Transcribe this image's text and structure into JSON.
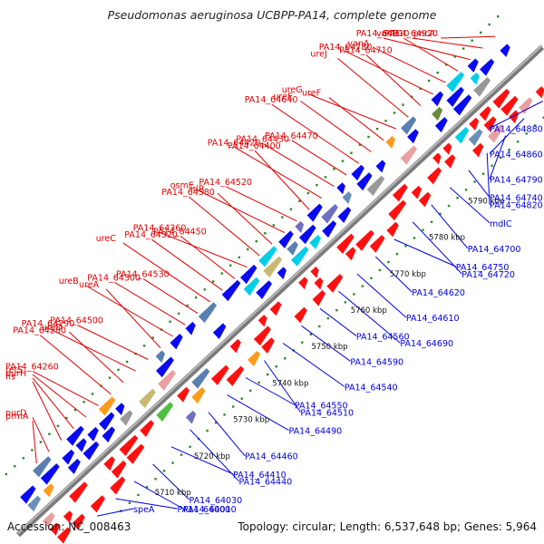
{
  "title": "Pseudomonas aeruginosa UCBPP-PA14, complete genome",
  "footer": {
    "accession": "Accession: NC_008463",
    "summary": "Topology: circular; Length: 6,537,648 bp; Genes: 5,964"
  },
  "colors": {
    "backbone": "#7a7a7a",
    "upper_gene_label": "#e00000",
    "lower_gene_label": "#0000dd",
    "gc_dots": "#2a8a2a",
    "forward_gene": "#ff1010",
    "reverse_gene": "#0a0af0"
  },
  "ticks": [
    "5710 kbp",
    "5720 kbp",
    "5730 kbp",
    "5740 kbp",
    "5750 kbp",
    "5760 kbp",
    "5770 kbp",
    "5780 kbp",
    "5790 kbp"
  ],
  "upper_labels": [
    "pncA",
    "PA14_64920",
    "PA14_64910",
    "vanB",
    "vanA",
    "PA14_64780",
    "PA14_64710",
    "ureJ",
    "ureG",
    "ureF",
    "ureE",
    "PA14_64640",
    "PA14_64470",
    "PA14_64430",
    "PA14_64420",
    "PA14_64400",
    "PA14_64520",
    "osmE",
    "irlR",
    "PA14_64580",
    "PA14_64360",
    "PA14_64450",
    "PA14_64320",
    "ureC",
    "PA14_64530",
    "PA14_64300",
    "ureB",
    "ureA",
    "PA14_64500",
    "PA14_64290",
    "ureD",
    "PA14_64280",
    "PA14_64260",
    "retS",
    "purH",
    "fis",
    "purD",
    "prmA"
  ],
  "lower_labels": [
    "PA14_64880",
    "PA14_64860",
    "PA14_64790",
    "PA14_64820",
    "PA14_64740",
    "mdlC",
    "PA14_64700",
    "PA14_64720",
    "PA14_64750",
    "PA14_64620",
    "PA14_64610",
    "PA14_64690",
    "PA14_64560",
    "PA14_64590",
    "PA14_64540",
    "PA14_64510",
    "PA14_64550",
    "PA14_64490",
    "PA14_64460",
    "PA14_64440",
    "PA14_64410",
    "PA14_64030",
    "PA14_64010",
    "PA14_64000",
    "speA"
  ]
}
